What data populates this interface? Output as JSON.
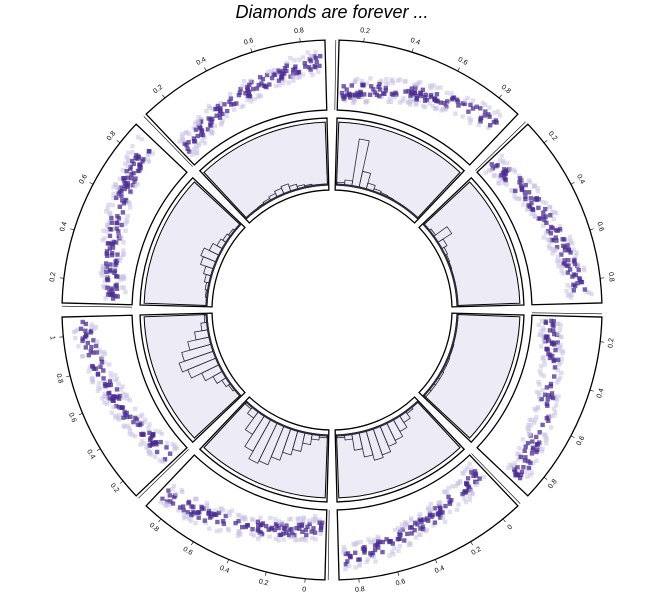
{
  "chart_data": {
    "type": "circos",
    "title": "Diamonds are forever ...",
    "sector_count": 8,
    "outer_track": {
      "type": "scatter",
      "point_color": "#4b2c91",
      "point_fade_color": "#c9c3e3",
      "tick_labels": [
        "0",
        "0.2",
        "0.4",
        "0.6",
        "0.8",
        "1"
      ],
      "ylim": [
        0,
        1
      ]
    },
    "inner_track": {
      "type": "histogram",
      "background": "#edebf6",
      "bar_color": "#2a2a3a"
    },
    "sectors": [
      {
        "xticks": [
          "0.2",
          "0.4",
          "0.6",
          "0.8"
        ],
        "ylim": [
          0,
          1
        ],
        "hist": [
          0.05,
          0.1,
          0.85,
          0.3,
          0.12,
          0.06,
          0.04,
          0.03,
          0.02,
          0.02,
          0.01,
          0.01
        ]
      },
      {
        "xticks": [
          "0.2",
          "0.4",
          "0.6",
          "0.8"
        ],
        "ylim": [
          0,
          1
        ],
        "hist": [
          0.02,
          0.05,
          0.3,
          0.12,
          0.06,
          0.04,
          0.03,
          0.02,
          0.02,
          0.01,
          0.01,
          0.01
        ]
      },
      {
        "xticks": [
          "0.2",
          "0.4",
          "0.6",
          "0.8"
        ],
        "ylim": [
          0,
          1
        ],
        "hist": [
          0.01,
          0.01,
          0.02,
          0.02,
          0.03,
          0.03,
          0.04,
          0.04,
          0.05,
          0.05,
          0.05,
          0.05
        ]
      },
      {
        "xticks": [
          "0",
          "0.2",
          "0.4",
          "0.6",
          "0.8"
        ],
        "ylim": [
          0,
          1
        ],
        "hist": [
          0.02,
          0.05,
          0.15,
          0.25,
          0.35,
          0.4,
          0.5,
          0.55,
          0.45,
          0.3,
          0.1,
          0.05
        ]
      },
      {
        "xticks": [
          "0",
          "0.2",
          "0.4",
          "0.6",
          "0.8"
        ],
        "ylim": [
          0,
          1
        ],
        "hist": [
          0.05,
          0.1,
          0.2,
          0.35,
          0.45,
          0.6,
          0.75,
          0.8,
          0.65,
          0.4,
          0.15,
          0.05
        ]
      },
      {
        "xticks": [
          "0.2",
          "0.4",
          "0.6",
          "0.8",
          "1"
        ],
        "ylim": [
          0,
          1
        ],
        "hist": [
          0.02,
          0.05,
          0.1,
          0.2,
          0.35,
          0.55,
          0.65,
          0.55,
          0.4,
          0.25,
          0.12,
          0.05
        ]
      },
      {
        "xticks": [
          "0.2",
          "0.4",
          "0.6",
          "0.8"
        ],
        "ylim": [
          0,
          1
        ],
        "hist": [
          0.02,
          0.04,
          0.06,
          0.1,
          0.15,
          0.25,
          0.3,
          0.2,
          0.12,
          0.08,
          0.05,
          0.02
        ]
      },
      {
        "xticks": [
          "0.2",
          "0.4",
          "0.6",
          "0.8"
        ],
        "ylim": [
          0,
          1
        ],
        "hist": [
          0.01,
          0.02,
          0.03,
          0.05,
          0.08,
          0.12,
          0.15,
          0.1,
          0.06,
          0.04,
          0.02,
          0.01
        ]
      }
    ]
  }
}
